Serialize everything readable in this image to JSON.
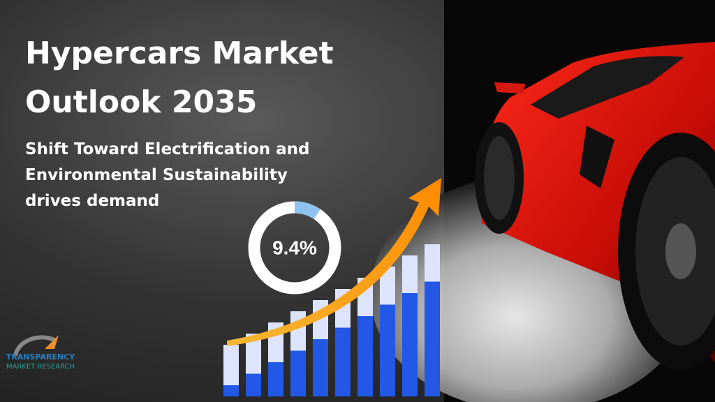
{
  "title": "Hypercars Market Outlook 2035",
  "subtitle": "Shift Toward Electrification and Environmental Sustainability drives demand",
  "cagr": {
    "value": 9.4,
    "label": "9.4%"
  },
  "logo": {
    "name": "TRANSPARENCY",
    "subname": "MARKET RESEARCH"
  }
}
